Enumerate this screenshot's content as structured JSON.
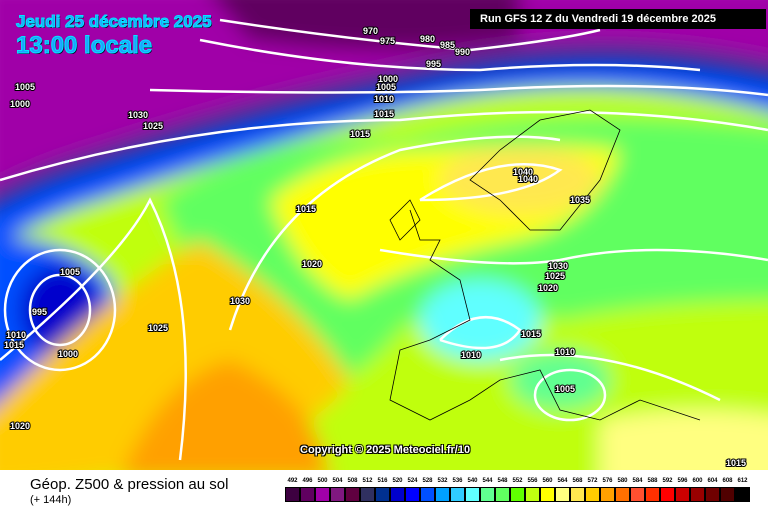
{
  "header": {
    "date": "Jeudi 25 décembre 2025",
    "time": "13:00 locale",
    "run": "Run GFS 12 Z du Vendredi 19 décembre 2025"
  },
  "copyright": "Copyright © 2025 Meteociel.fr/10",
  "footer": {
    "title": "Géop. Z500 & pression au sol",
    "lead": "(+ 144h)"
  },
  "legend": {
    "labels": [
      "492",
      "496",
      "500",
      "504",
      "508",
      "512",
      "516",
      "520",
      "524",
      "528",
      "532",
      "536",
      "540",
      "544",
      "548",
      "552",
      "556",
      "560",
      "564",
      "568",
      "572",
      "576",
      "580",
      "584",
      "588",
      "592",
      "596",
      "600",
      "604",
      "608",
      "612"
    ],
    "colors": [
      "#3d0040",
      "#600060",
      "#a000a8",
      "#801880",
      "#600040",
      "#303060",
      "#003090",
      "#0000cc",
      "#0000ff",
      "#0050ff",
      "#00a0ff",
      "#30ccff",
      "#60ffff",
      "#60ff90",
      "#60ff60",
      "#60ff00",
      "#c0ff10",
      "#ffff00",
      "#ffff80",
      "#ffe850",
      "#ffcc00",
      "#ffa000",
      "#ff7000",
      "#ff5030",
      "#ff3000",
      "#ff0000",
      "#cc0000",
      "#990000",
      "#700000",
      "#500000",
      "#000000"
    ]
  },
  "isobars": [
    "970",
    "975",
    "980",
    "985",
    "990",
    "995",
    "1000",
    "1005",
    "1010",
    "1015",
    "1005",
    "1000",
    "1030",
    "1025",
    "1015",
    "1015",
    "1020",
    "1030",
    "1025",
    "1005",
    "995",
    "1010",
    "1015",
    "1000",
    "1020",
    "1040",
    "1040",
    "1035",
    "1030",
    "1025",
    "1020",
    "1015",
    "1010",
    "1010",
    "1005",
    "1015"
  ]
}
